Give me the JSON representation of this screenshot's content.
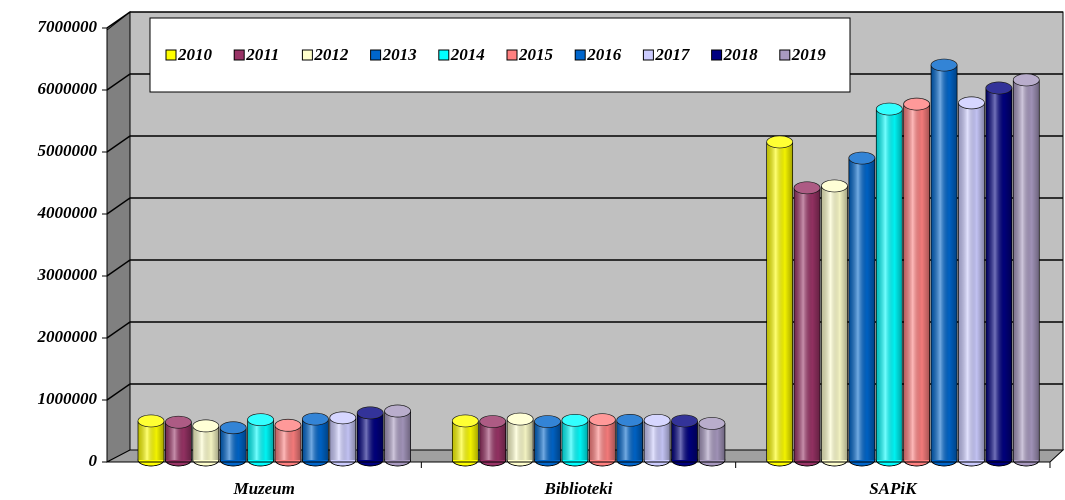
{
  "chart_data": {
    "type": "bar",
    "categories": [
      "Muzeum",
      "Biblioteki",
      "SAPiK"
    ],
    "series": [
      {
        "name": "2010",
        "color": "#ffff00",
        "values": [
          630000,
          630000,
          5130000
        ]
      },
      {
        "name": "2011",
        "color": "#993366",
        "values": [
          610000,
          620000,
          4390000
        ]
      },
      {
        "name": "2012",
        "color": "#ffffcc",
        "values": [
          550000,
          660000,
          4420000
        ]
      },
      {
        "name": "2013",
        "color": "#0066cc",
        "values": [
          520000,
          620000,
          4870000
        ]
      },
      {
        "name": "2014",
        "color": "#00ffff",
        "values": [
          650000,
          640000,
          5660000
        ]
      },
      {
        "name": "2015",
        "color": "#ff8080",
        "values": [
          560000,
          650000,
          5740000
        ]
      },
      {
        "name": "2016",
        "color": "#0066cc",
        "values": [
          660000,
          640000,
          6370000
        ]
      },
      {
        "name": "2017",
        "color": "#ccccff",
        "values": [
          680000,
          640000,
          5760000
        ]
      },
      {
        "name": "2018",
        "color": "#000080",
        "values": [
          760000,
          630000,
          6000000
        ]
      },
      {
        "name": "2019",
        "color": "#a899c0",
        "values": [
          790000,
          590000,
          6130000
        ]
      }
    ],
    "ylim": [
      0,
      7000000
    ],
    "yticks": [
      0,
      1000000,
      2000000,
      3000000,
      4000000,
      5000000,
      6000000,
      7000000
    ],
    "grid": true,
    "legend": "top"
  }
}
